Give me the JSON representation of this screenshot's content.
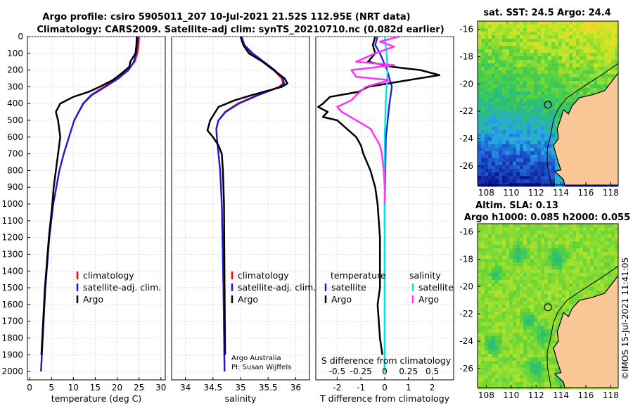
{
  "title_line1": "Argo profile: csiro 5905011_207 10-Jul-2021 21.52S 112.95E (NRT data)",
  "title_line2": "Climatology: CARS2009. Satellite-adj clim: synTS_20210710.nc (0.082d earlier)",
  "colors": {
    "climatology": "#ff0000",
    "satellite": "#1a1ae6",
    "argo": "#000000",
    "sal_satellite": "#00e5e5",
    "sal_argo": "#ff33ff",
    "land": "#f9c896",
    "sea_line": "#000000"
  },
  "chart_data": [
    {
      "type": "line",
      "name": "temperature",
      "xlabel": "temperature (deg C)",
      "ylabel": "",
      "xlim": [
        -0.5,
        31
      ],
      "ylim": [
        2050,
        0
      ],
      "xticks": [
        0,
        5,
        10,
        15,
        20,
        25,
        30
      ],
      "yticks": [
        0,
        100,
        200,
        300,
        400,
        500,
        600,
        700,
        800,
        900,
        1000,
        1100,
        1200,
        1300,
        1400,
        1500,
        1600,
        1700,
        1800,
        1900,
        2000
      ],
      "legend": [
        "climatology",
        "satellite-adj. clim.",
        "Argo"
      ],
      "series": [
        {
          "name": "climatology",
          "depth": [
            0,
            50,
            100,
            150,
            200,
            250,
            300,
            350,
            400,
            500,
            600,
            700,
            800,
            1000,
            1200,
            1500,
            1800,
            2000
          ],
          "values": [
            25.0,
            24.9,
            24.6,
            24.0,
            22.5,
            20.0,
            17.0,
            14.0,
            12.2,
            10.2,
            9.0,
            7.8,
            6.8,
            5.4,
            4.5,
            3.6,
            3.0,
            2.6
          ]
        },
        {
          "name": "satellite-adj. clim.",
          "depth": [
            0,
            50,
            100,
            150,
            200,
            250,
            300,
            350,
            400,
            500,
            600,
            700,
            800,
            1000,
            1200,
            1500,
            1800,
            2000
          ],
          "values": [
            24.7,
            24.6,
            24.3,
            23.8,
            22.6,
            20.3,
            17.3,
            14.2,
            12.3,
            10.2,
            9.0,
            7.8,
            6.8,
            5.4,
            4.5,
            3.6,
            3.0,
            2.6
          ]
        },
        {
          "name": "Argo",
          "depth": [
            0,
            50,
            100,
            150,
            180,
            220,
            260,
            300,
            330,
            360,
            400,
            450,
            500,
            600,
            700,
            800,
            900,
            1000,
            1200,
            1500,
            1800,
            1900
          ],
          "values": [
            24.5,
            24.4,
            24.2,
            23.0,
            22.8,
            21.0,
            19.0,
            16.0,
            13.5,
            10.0,
            7.0,
            6.0,
            6.5,
            7.0,
            6.5,
            6.0,
            5.5,
            5.2,
            4.4,
            3.5,
            2.9,
            2.7
          ]
        }
      ]
    },
    {
      "type": "line",
      "name": "salinity",
      "xlabel": "salinity",
      "xlim": [
        33.75,
        36.25
      ],
      "ylim": [
        2050,
        0
      ],
      "xticks": [
        34,
        34.5,
        35,
        35.5,
        36
      ],
      "legend": [
        "climatology",
        "satellite-adj. clim.",
        "Argo"
      ],
      "credit_line1": "Argo Australia",
      "credit_line2": "PI: Susan Wijffels",
      "series": [
        {
          "name": "climatology",
          "depth": [
            0,
            50,
            100,
            150,
            200,
            250,
            280,
            300,
            350,
            400,
            450,
            500,
            550,
            600,
            700,
            800,
            1000,
            1500,
            2000
          ],
          "values": [
            35.0,
            35.05,
            35.2,
            35.4,
            35.6,
            35.75,
            35.77,
            35.7,
            35.3,
            34.95,
            34.72,
            34.6,
            34.56,
            34.57,
            34.6,
            34.63,
            34.66,
            34.69,
            34.71
          ]
        },
        {
          "name": "satellite-adj. clim.",
          "depth": [
            0,
            50,
            100,
            150,
            200,
            250,
            280,
            300,
            350,
            400,
            450,
            500,
            550,
            600,
            700,
            800,
            1000,
            1500,
            2000
          ],
          "values": [
            35.02,
            35.07,
            35.22,
            35.42,
            35.62,
            35.77,
            35.79,
            35.72,
            35.32,
            34.97,
            34.73,
            34.6,
            34.56,
            34.57,
            34.6,
            34.63,
            34.66,
            34.69,
            34.71
          ]
        },
        {
          "name": "Argo",
          "depth": [
            0,
            50,
            100,
            150,
            200,
            250,
            280,
            300,
            350,
            380,
            420,
            500,
            560,
            600,
            650,
            700,
            800,
            1000,
            1500,
            1900
          ],
          "values": [
            35.0,
            35.05,
            35.15,
            35.4,
            35.6,
            35.8,
            35.85,
            35.75,
            35.2,
            34.9,
            34.6,
            34.45,
            34.4,
            34.5,
            34.6,
            34.66,
            34.68,
            34.7,
            34.71,
            34.72
          ]
        }
      ]
    },
    {
      "type": "line",
      "name": "difference",
      "xlabel": "T difference from climatology",
      "xlabel_top": "S difference from climatology",
      "xlim": [
        -2.9,
        2.9
      ],
      "ylim": [
        2050,
        0
      ],
      "xticks": [
        -2,
        -1,
        0,
        1,
        2
      ],
      "xticks_top": [
        "-0.5",
        "-0.25",
        "0",
        "0.25",
        "0.5"
      ],
      "legend_temperature_title": "temperature",
      "legend_salinity_title": "salinity",
      "legend_labels": [
        "satellite",
        "Argo",
        "satellite",
        "Argo"
      ],
      "series": [
        {
          "name": "T satellite",
          "depth": [
            0,
            50,
            100,
            200,
            300,
            400,
            600,
            1000,
            1500,
            2000
          ],
          "values": [
            -0.3,
            -0.4,
            -0.2,
            0.1,
            0.3,
            0.2,
            0.05,
            0,
            0,
            0
          ]
        },
        {
          "name": "T Argo",
          "depth": [
            0,
            50,
            100,
            150,
            180,
            200,
            230,
            260,
            300,
            330,
            360,
            400,
            420,
            450,
            480,
            500,
            550,
            600,
            650,
            700,
            800,
            900,
            1000,
            1200,
            1500,
            1600,
            1800,
            1900
          ],
          "values": [
            -0.4,
            -0.5,
            -0.4,
            -0.7,
            0.3,
            1.5,
            2.3,
            1.0,
            -0.7,
            -1.1,
            -2.3,
            -2.6,
            -2.8,
            -2.4,
            -2.6,
            -2.0,
            -1.6,
            -1.2,
            -1.0,
            -0.9,
            -0.6,
            -0.4,
            -0.3,
            -0.2,
            -0.2,
            -0.3,
            -0.2,
            -0.1
          ]
        },
        {
          "name": "S satellite",
          "depth": [
            0,
            100,
            200,
            400,
            600,
            1000,
            1500,
            2000
          ],
          "values": [
            0.0,
            0.02,
            0.03,
            0.01,
            0.0,
            0.0,
            0.0,
            0.0
          ]
        },
        {
          "name": "S Argo",
          "depth": [
            0,
            30,
            60,
            100,
            150,
            170,
            200,
            240,
            260,
            300,
            350,
            380,
            420,
            450,
            500,
            550,
            600,
            650,
            700,
            800,
            900,
            1000
          ],
          "values": [
            0.15,
            -0.05,
            0.1,
            -0.1,
            -0.3,
            0.1,
            -0.35,
            -0.3,
            0.05,
            -0.2,
            -0.3,
            -0.35,
            -0.5,
            -0.45,
            -0.3,
            -0.15,
            -0.1,
            -0.05,
            -0.03,
            -0.01,
            0.0,
            0.0
          ]
        }
      ]
    },
    {
      "type": "heatmap",
      "name": "sst_map",
      "title": "sat. SST: 24.5 Argo: 24.4",
      "xticks": [
        108,
        110,
        112,
        114,
        116,
        118
      ],
      "yticks": [
        -16,
        -18,
        -20,
        -22,
        -24,
        -26
      ],
      "marker": {
        "lon": 112.95,
        "lat": -21.52
      }
    },
    {
      "type": "heatmap",
      "name": "sla_map",
      "title_line1": "Altim. SLA: 0.13",
      "title_line2": "Argo h1000: 0.085 h2000: 0.055",
      "xticks": [
        108,
        110,
        112,
        114,
        116,
        118
      ],
      "yticks": [
        -16,
        -18,
        -20,
        -22,
        -24,
        -26
      ],
      "marker": {
        "lon": 112.95,
        "lat": -21.52
      }
    }
  ],
  "watermark": "©IMOS 15-Jul-2021 11:41:05"
}
